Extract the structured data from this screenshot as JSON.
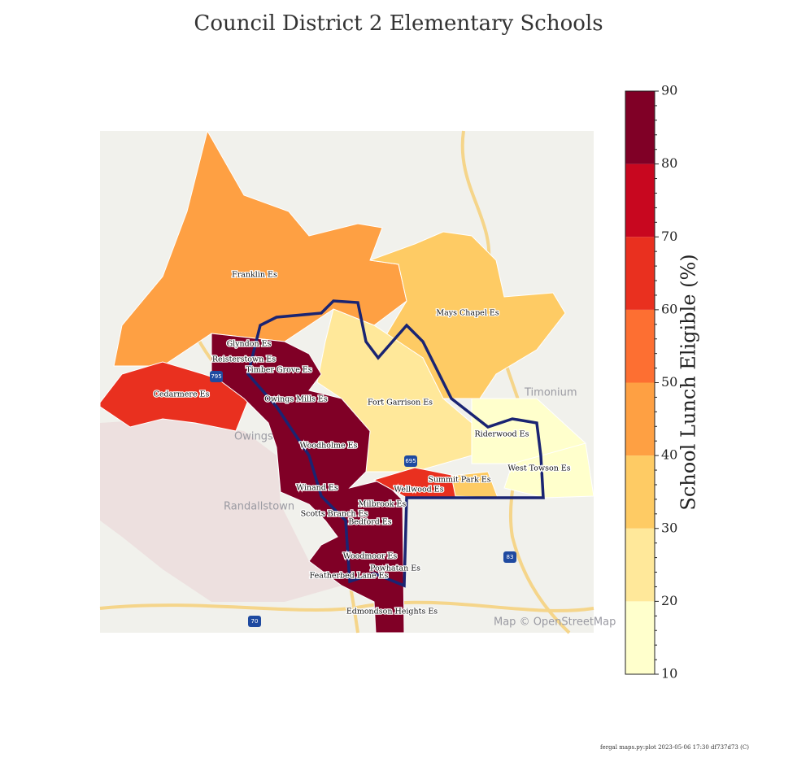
{
  "title": "Council District 2 Elementary Schools",
  "schools": [
    "Franklin Es",
    "Mays Chapel Es",
    "Glyndon Es",
    "Reisterstown Es",
    "Timber Grove Es",
    "Cedarmere Es",
    "Owings Mills Es",
    "Fort Garrison Es",
    "Riderwood Es",
    "Woodholme Es",
    "West Towson Es",
    "Summit Park Es",
    "Winand Es",
    "Wellwood Es",
    "Milbrook Es",
    "Scotts Branch Es",
    "Bedford Es",
    "Woodmoor Es",
    "Powhatan Es",
    "Featherbed Lane Es",
    "Edmondson Heights Es"
  ],
  "basemap_labels": [
    "Timonium",
    "Owings",
    "Randallstown",
    "Map © OpenStreetMap",
    "795",
    "695",
    "83",
    "70"
  ],
  "colorbar": {
    "label": "School Lunch Eligible (%)",
    "ticks": [
      10,
      20,
      30,
      40,
      50,
      60,
      70,
      80,
      90
    ],
    "colors": [
      "#ffffcc",
      "#ffe89a",
      "#fecb64",
      "#fea043",
      "#fd6f32",
      "#e9301f",
      "#c8071f",
      "#800026"
    ]
  },
  "footer": "fergal maps.py:plot 2023-05-06 17:30 df737d73 (C)"
}
